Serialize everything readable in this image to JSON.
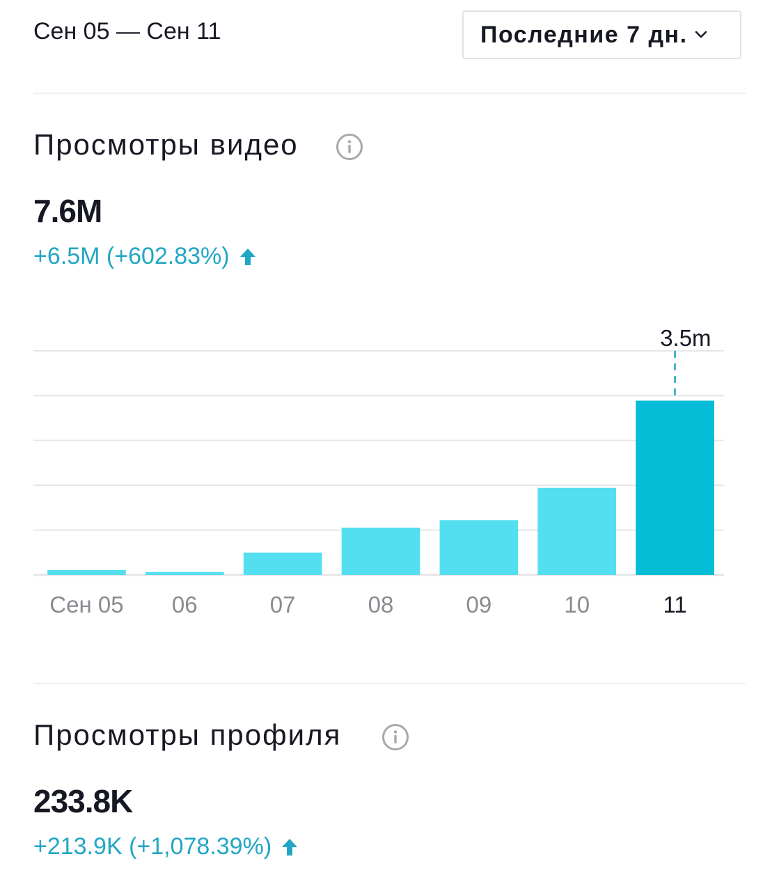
{
  "header": {
    "date_range": "Сен 05 — Сен 11",
    "period_select": "Последние 7 дн."
  },
  "sections": [
    {
      "title": "Просмотры видео",
      "value": "7.6M",
      "change": "+6.5M (+602.83%)"
    },
    {
      "title": "Просмотры профиля",
      "value": "233.8K",
      "change": "+213.9K (+1,078.39%)"
    }
  ],
  "colors": {
    "accent": "#22a6c5",
    "bar": "#54dff0",
    "bar_selected": "#05bdd7",
    "grid": "#e6e6e8",
    "text": "#161823",
    "muted": "#8a8b91"
  },
  "icons": [
    "chevron-down-icon",
    "info-icon",
    "arrow-up-icon"
  ],
  "chart_data": {
    "type": "bar",
    "categories": [
      "Сен 05",
      "06",
      "07",
      "08",
      "09",
      "10",
      "11"
    ],
    "values": [
      0.1,
      0.06,
      0.45,
      0.95,
      1.1,
      1.75,
      3.5
    ],
    "selected_index": 6,
    "selected_label": "3.5m",
    "ylim": [
      0,
      4.5
    ],
    "grid": true,
    "title": "",
    "xlabel": "",
    "ylabel": ""
  }
}
